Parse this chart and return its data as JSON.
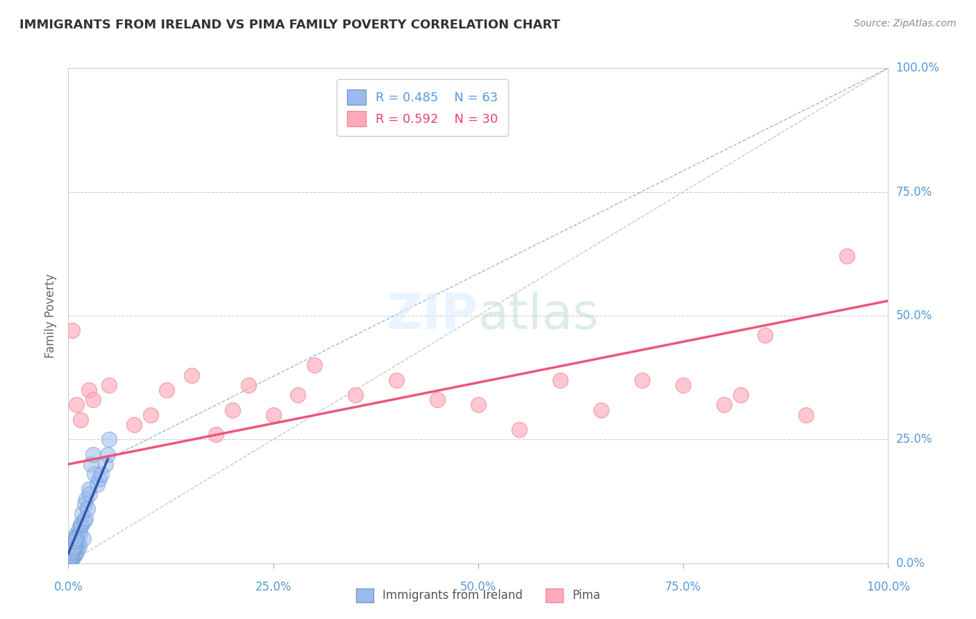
{
  "title": "IMMIGRANTS FROM IRELAND VS PIMA FAMILY POVERTY CORRELATION CHART",
  "source": "Source: ZipAtlas.com",
  "ylabel": "Family Poverty",
  "legend_label1": "Immigrants from Ireland",
  "legend_label2": "Pima",
  "r1": 0.485,
  "n1": 63,
  "r2": 0.592,
  "n2": 30,
  "xlim": [
    0,
    100
  ],
  "ylim": [
    0,
    100
  ],
  "xticks": [
    0,
    25,
    50,
    75,
    100
  ],
  "yticks": [
    0,
    25,
    50,
    75,
    100
  ],
  "xtick_labels": [
    "0.0%",
    "25.0%",
    "50.0%",
    "75.0%",
    "100.0%"
  ],
  "ytick_labels": [
    "0.0%",
    "25.0%",
    "50.0%",
    "75.0%",
    "100.0%"
  ],
  "color_blue": "#99BBEE",
  "color_blue_edge": "#7799CC",
  "color_pink": "#FFAABB",
  "color_pink_edge": "#EE8899",
  "color_blue_line": "#3355AA",
  "color_pink_line": "#EE5577",
  "color_blue_dash": "#7799CC",
  "background_color": "#FFFFFF",
  "grid_color": "#CCCCCC",
  "tick_label_color": "#5599DD",
  "blue_scatter_x": [
    0.15,
    0.2,
    0.25,
    0.3,
    0.3,
    0.35,
    0.35,
    0.4,
    0.4,
    0.45,
    0.45,
    0.5,
    0.5,
    0.5,
    0.55,
    0.6,
    0.6,
    0.65,
    0.7,
    0.7,
    0.75,
    0.8,
    0.8,
    0.85,
    0.9,
    0.9,
    1.0,
    1.0,
    1.0,
    1.1,
    1.1,
    1.2,
    1.3,
    1.3,
    1.4,
    1.5,
    1.6,
    1.7,
    1.8,
    1.9,
    2.0,
    2.1,
    2.2,
    2.3,
    2.5,
    2.6,
    2.8,
    3.0,
    3.2,
    3.5,
    3.8,
    4.0,
    4.5,
    4.8,
    5.0,
    0.2,
    0.3,
    0.4,
    0.5,
    0.6,
    0.7,
    0.8,
    0.9
  ],
  "blue_scatter_y": [
    1.0,
    1.5,
    1.0,
    2.0,
    1.5,
    2.5,
    1.0,
    2.0,
    3.0,
    1.5,
    2.5,
    1.0,
    2.0,
    3.0,
    1.5,
    2.0,
    3.5,
    2.5,
    3.0,
    2.0,
    1.5,
    4.0,
    2.5,
    3.0,
    5.0,
    2.0,
    3.5,
    4.5,
    6.0,
    2.5,
    5.5,
    4.0,
    7.0,
    3.5,
    6.0,
    8.0,
    7.5,
    10.0,
    5.0,
    8.5,
    12.0,
    9.0,
    13.0,
    11.0,
    15.0,
    14.0,
    20.0,
    22.0,
    18.0,
    16.0,
    17.0,
    18.0,
    20.0,
    22.0,
    25.0,
    1.0,
    1.5,
    2.0,
    2.5,
    3.0,
    3.5,
    4.5,
    5.0
  ],
  "pink_scatter_x": [
    0.5,
    1.0,
    1.5,
    2.5,
    3.0,
    5.0,
    8.0,
    10.0,
    12.0,
    15.0,
    18.0,
    20.0,
    22.0,
    25.0,
    28.0,
    30.0,
    35.0,
    40.0,
    45.0,
    50.0,
    55.0,
    60.0,
    65.0,
    70.0,
    75.0,
    80.0,
    82.0,
    85.0,
    90.0,
    95.0
  ],
  "pink_scatter_y": [
    47.0,
    32.0,
    29.0,
    35.0,
    33.0,
    36.0,
    28.0,
    30.0,
    35.0,
    38.0,
    26.0,
    31.0,
    36.0,
    30.0,
    34.0,
    40.0,
    34.0,
    37.0,
    33.0,
    32.0,
    27.0,
    37.0,
    31.0,
    37.0,
    36.0,
    32.0,
    34.0,
    46.0,
    30.0,
    62.0
  ],
  "blue_line_x": [
    0.0,
    4.8
  ],
  "blue_line_y": [
    2.0,
    21.0
  ],
  "blue_dash_line_x": [
    4.8,
    100
  ],
  "blue_dash_line_y": [
    21.0,
    100
  ],
  "pink_line_x": [
    0,
    100
  ],
  "pink_line_y": [
    20.0,
    53.0
  ],
  "ref_line_x": [
    0,
    100
  ],
  "ref_line_y": [
    0,
    100
  ]
}
